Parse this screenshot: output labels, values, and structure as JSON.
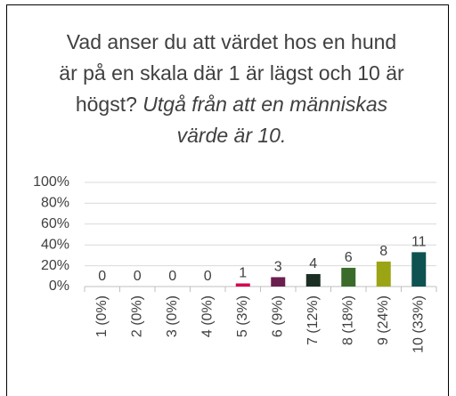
{
  "chart_data": {
    "type": "bar",
    "title": "Vad anser du att värdet hos en hund är på en skala där 1 är lägst och 10 är högst?",
    "subtitle": "Utgå från att en människas värde är 10.",
    "categories": [
      "1 (0%)",
      "2 (0%)",
      "3 (0%)",
      "4 (0%)",
      "5 (3%)",
      "6 (9%)",
      "7 (12%)",
      "8 (18%)",
      "9 (24%)",
      "10 (33%)"
    ],
    "values": [
      0,
      0,
      0,
      0,
      3,
      9,
      12,
      18,
      24,
      33
    ],
    "counts": [
      0,
      0,
      0,
      0,
      1,
      3,
      4,
      6,
      8,
      11
    ],
    "colors": [
      "#808080",
      "#808080",
      "#808080",
      "#808080",
      "#d6004f",
      "#6b1f4f",
      "#1c2f24",
      "#3b6b2b",
      "#9ba514",
      "#0e5252"
    ],
    "ylim": [
      0,
      100
    ],
    "yticks": [
      {
        "value": 0,
        "label": "0%"
      },
      {
        "value": 20,
        "label": "20%"
      },
      {
        "value": 40,
        "label": "40%"
      },
      {
        "value": 60,
        "label": "60%"
      },
      {
        "value": 80,
        "label": "80%"
      },
      {
        "value": 100,
        "label": "100%"
      }
    ],
    "grid": true
  }
}
